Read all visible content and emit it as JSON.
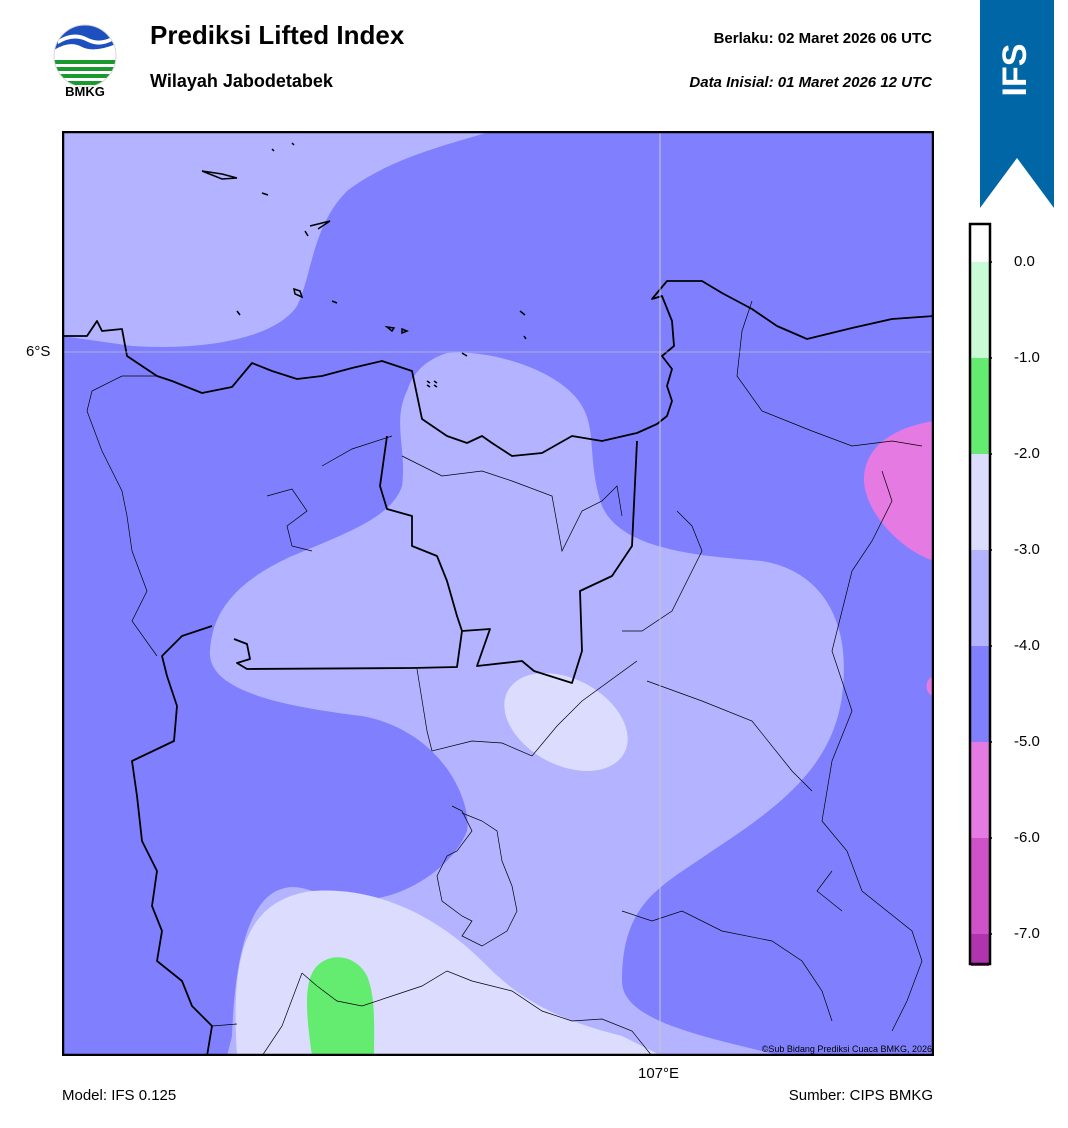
{
  "header": {
    "title": "Prediksi Lifted Index",
    "subtitle": "Wilayah Jabodetabek",
    "valid_label": "Berlaku:  02 Maret 2026 06 UTC",
    "init_label": "Data Inisial:  01 Maret 2026 12 UTC"
  },
  "logo": {
    "text": "BMKG"
  },
  "badge": {
    "text": "IFS",
    "color": "#0066a6"
  },
  "map": {
    "lat_tick": "6°S",
    "lon_tick": "107°E",
    "copyright": "©Sub Bidang Prediksi Cuaca BMKG, 2026"
  },
  "footer": {
    "model": "Model: IFS 0.125",
    "source": "Sumber: CIPS BMKG"
  },
  "colorbar": {
    "labels": [
      "0.0",
      "-1.0",
      "-2.0",
      "-3.0",
      "-4.0",
      "-5.0",
      "-6.0",
      "-7.0"
    ],
    "colors": [
      "#ffffff",
      "#c9fbd7",
      "#64ec70",
      "#dcdcff",
      "#b3b3ff",
      "#8080ff",
      "#e67ae3",
      "#cf52c9",
      "#b034ae",
      "#892286"
    ]
  }
}
